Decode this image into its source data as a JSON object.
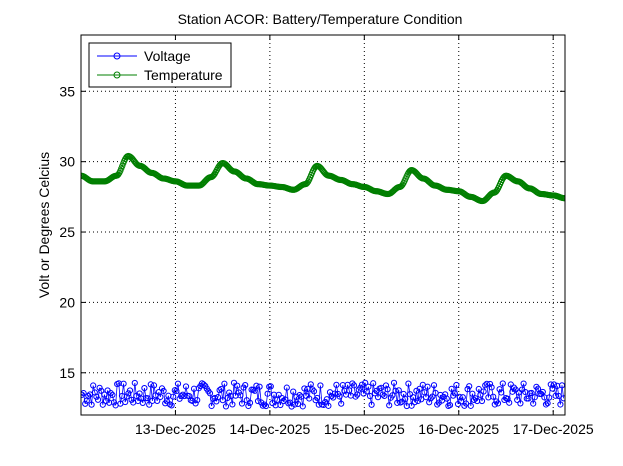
{
  "chart_data": {
    "type": "line",
    "title": "Station ACOR: Battery/Temperature Condition",
    "xlabel": "",
    "ylabel": "Volt or Degrees Celcius",
    "xlim": [
      "2025-12-12T00:00",
      "2025-12-17T03:00"
    ],
    "ylim": [
      12,
      39
    ],
    "x_ticks": [
      "2025-12-13",
      "2025-12-14",
      "2025-12-15",
      "2025-12-16",
      "2025-12-17"
    ],
    "x_tick_labels": [
      "13-Dec-2025",
      "14-Dec-2025",
      "15-Dec-2025",
      "16-Dec-2025",
      "17-Dec-2025"
    ],
    "y_ticks": [
      15,
      20,
      25,
      30,
      35
    ],
    "y_tick_labels": [
      "15",
      "20",
      "25",
      "30",
      "35"
    ],
    "grid": true,
    "legend": "top-left",
    "series": [
      {
        "name": "Voltage",
        "color": "#0000ff",
        "marker": "circle",
        "sampling": "every 6 minutes, continuous",
        "points": [
          [
            "2025-12-12T00:00",
            13.2
          ],
          [
            "2025-12-12T06:00",
            13.4
          ],
          [
            "2025-12-12T12:00",
            13.3
          ],
          [
            "2025-12-12T18:00",
            13.5
          ],
          [
            "2025-12-13T00:00",
            13.3
          ],
          [
            "2025-12-13T06:00",
            13.4
          ],
          [
            "2025-12-13T12:00",
            13.2
          ],
          [
            "2025-12-13T18:00",
            13.5
          ],
          [
            "2025-12-14T00:00",
            13.3
          ],
          [
            "2025-12-14T06:00",
            13.4
          ],
          [
            "2025-12-14T12:00",
            13.3
          ],
          [
            "2025-12-14T18:00",
            13.5
          ],
          [
            "2025-12-15T00:00",
            13.3
          ],
          [
            "2025-12-15T06:00",
            13.4
          ],
          [
            "2025-12-15T12:00",
            13.2
          ],
          [
            "2025-12-15T18:00",
            13.5
          ],
          [
            "2025-12-16T00:00",
            13.3
          ],
          [
            "2025-12-16T06:00",
            13.4
          ],
          [
            "2025-12-16T12:00",
            13.3
          ],
          [
            "2025-12-16T18:00",
            13.5
          ],
          [
            "2025-12-17T00:00",
            13.3
          ],
          [
            "2025-12-17T03:00",
            13.4
          ]
        ],
        "min": 12.6,
        "max": 14.3
      },
      {
        "name": "Temperature",
        "color": "#007f00",
        "marker": "circle",
        "points": [
          [
            "2025-12-12T00:00",
            29.0
          ],
          [
            "2025-12-12T03:00",
            28.6
          ],
          [
            "2025-12-12T06:00",
            28.6
          ],
          [
            "2025-12-12T09:00",
            29.0
          ],
          [
            "2025-12-12T12:00",
            30.4
          ],
          [
            "2025-12-12T15:00",
            29.7
          ],
          [
            "2025-12-12T18:00",
            29.2
          ],
          [
            "2025-12-12T21:00",
            28.8
          ],
          [
            "2025-12-13T00:00",
            28.6
          ],
          [
            "2025-12-13T03:00",
            28.3
          ],
          [
            "2025-12-13T06:00",
            28.3
          ],
          [
            "2025-12-13T09:00",
            28.9
          ],
          [
            "2025-12-13T12:00",
            29.9
          ],
          [
            "2025-12-13T15:00",
            29.3
          ],
          [
            "2025-12-13T18:00",
            28.8
          ],
          [
            "2025-12-13T21:00",
            28.4
          ],
          [
            "2025-12-14T00:00",
            28.3
          ],
          [
            "2025-12-14T03:00",
            28.2
          ],
          [
            "2025-12-14T06:00",
            28.0
          ],
          [
            "2025-12-14T09:00",
            28.4
          ],
          [
            "2025-12-14T12:00",
            29.7
          ],
          [
            "2025-12-14T15:00",
            29.0
          ],
          [
            "2025-12-14T18:00",
            28.7
          ],
          [
            "2025-12-14T21:00",
            28.4
          ],
          [
            "2025-12-15T00:00",
            28.2
          ],
          [
            "2025-12-15T03:00",
            27.9
          ],
          [
            "2025-12-15T06:00",
            27.7
          ],
          [
            "2025-12-15T09:00",
            28.2
          ],
          [
            "2025-12-15T12:00",
            29.4
          ],
          [
            "2025-12-15T15:00",
            28.8
          ],
          [
            "2025-12-15T18:00",
            28.3
          ],
          [
            "2025-12-15T21:00",
            28.0
          ],
          [
            "2025-12-16T00:00",
            27.9
          ],
          [
            "2025-12-16T03:00",
            27.5
          ],
          [
            "2025-12-16T06:00",
            27.2
          ],
          [
            "2025-12-16T09:00",
            27.8
          ],
          [
            "2025-12-16T12:00",
            29.0
          ],
          [
            "2025-12-16T15:00",
            28.6
          ],
          [
            "2025-12-16T18:00",
            28.1
          ],
          [
            "2025-12-16T21:00",
            27.7
          ],
          [
            "2025-12-17T00:00",
            27.6
          ],
          [
            "2025-12-17T03:00",
            27.4
          ]
        ]
      }
    ]
  }
}
